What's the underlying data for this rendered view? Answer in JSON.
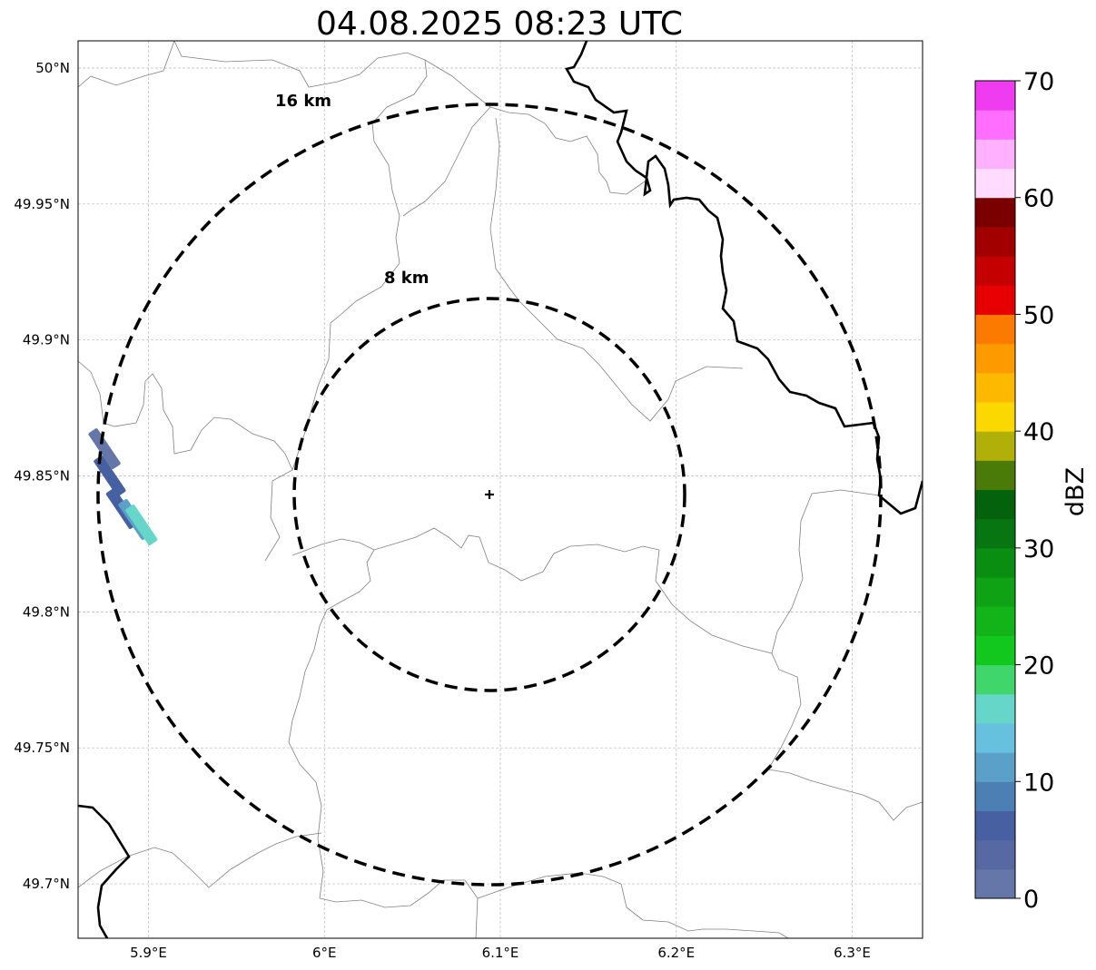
{
  "title": "04.08.2025 08:23 UTC",
  "map": {
    "lon_range": [
      5.86,
      6.34
    ],
    "lat_range": [
      49.68,
      50.01
    ],
    "lon_ticks": [
      {
        "value": 5.9,
        "label": "5.9°E"
      },
      {
        "value": 6.0,
        "label": "6°E"
      },
      {
        "value": 6.1,
        "label": "6.1°E"
      },
      {
        "value": 6.2,
        "label": "6.2°E"
      },
      {
        "value": 6.3,
        "label": "6.3°E"
      }
    ],
    "lat_ticks": [
      {
        "value": 50.0,
        "label": "50°N"
      },
      {
        "value": 49.95,
        "label": "49.95°N"
      },
      {
        "value": 49.9,
        "label": "49.9°N"
      },
      {
        "value": 49.85,
        "label": "49.85°N"
      },
      {
        "value": 49.8,
        "label": "49.8°N"
      },
      {
        "value": 49.75,
        "label": "49.75°N"
      },
      {
        "value": 49.7,
        "label": "49.7°N"
      }
    ],
    "grid": true,
    "radar_site": {
      "lon": 6.096,
      "lat": 49.843
    },
    "range_rings": [
      {
        "label": "8 km",
        "radius_km": 8
      },
      {
        "label": "16 km",
        "radius_km": 16
      }
    ],
    "echoes": [
      {
        "lon": 5.875,
        "lat": 49.86,
        "dbz": 2
      },
      {
        "lon": 5.878,
        "lat": 49.85,
        "dbz": 5
      },
      {
        "lon": 5.885,
        "lat": 49.838,
        "dbz": 5
      },
      {
        "lon": 5.892,
        "lat": 49.834,
        "dbz": 12
      },
      {
        "lon": 5.896,
        "lat": 49.832,
        "dbz": 17
      }
    ]
  },
  "colorbar": {
    "label": "dBZ",
    "min": 0,
    "max": 70,
    "step": 2.5,
    "tick_values": [
      "0",
      "10",
      "20",
      "30",
      "40",
      "50",
      "60",
      "70"
    ],
    "colors": [
      "#6477a8",
      "#5669a3",
      "#4660a2",
      "#4c7fb3",
      "#5aa0c8",
      "#65c1de",
      "#66d6c8",
      "#3fd66c",
      "#12c81e",
      "#12b41a",
      "#0ea214",
      "#0a8e12",
      "#077610",
      "#05620c",
      "#4a7a08",
      "#b0b008",
      "#fbd800",
      "#fcb900",
      "#fc9a00",
      "#fc7a00",
      "#e60000",
      "#c40000",
      "#a20000",
      "#7a0000",
      "#ffdcff",
      "#ffb0ff",
      "#ff6eff",
      "#f03cf0"
    ]
  }
}
